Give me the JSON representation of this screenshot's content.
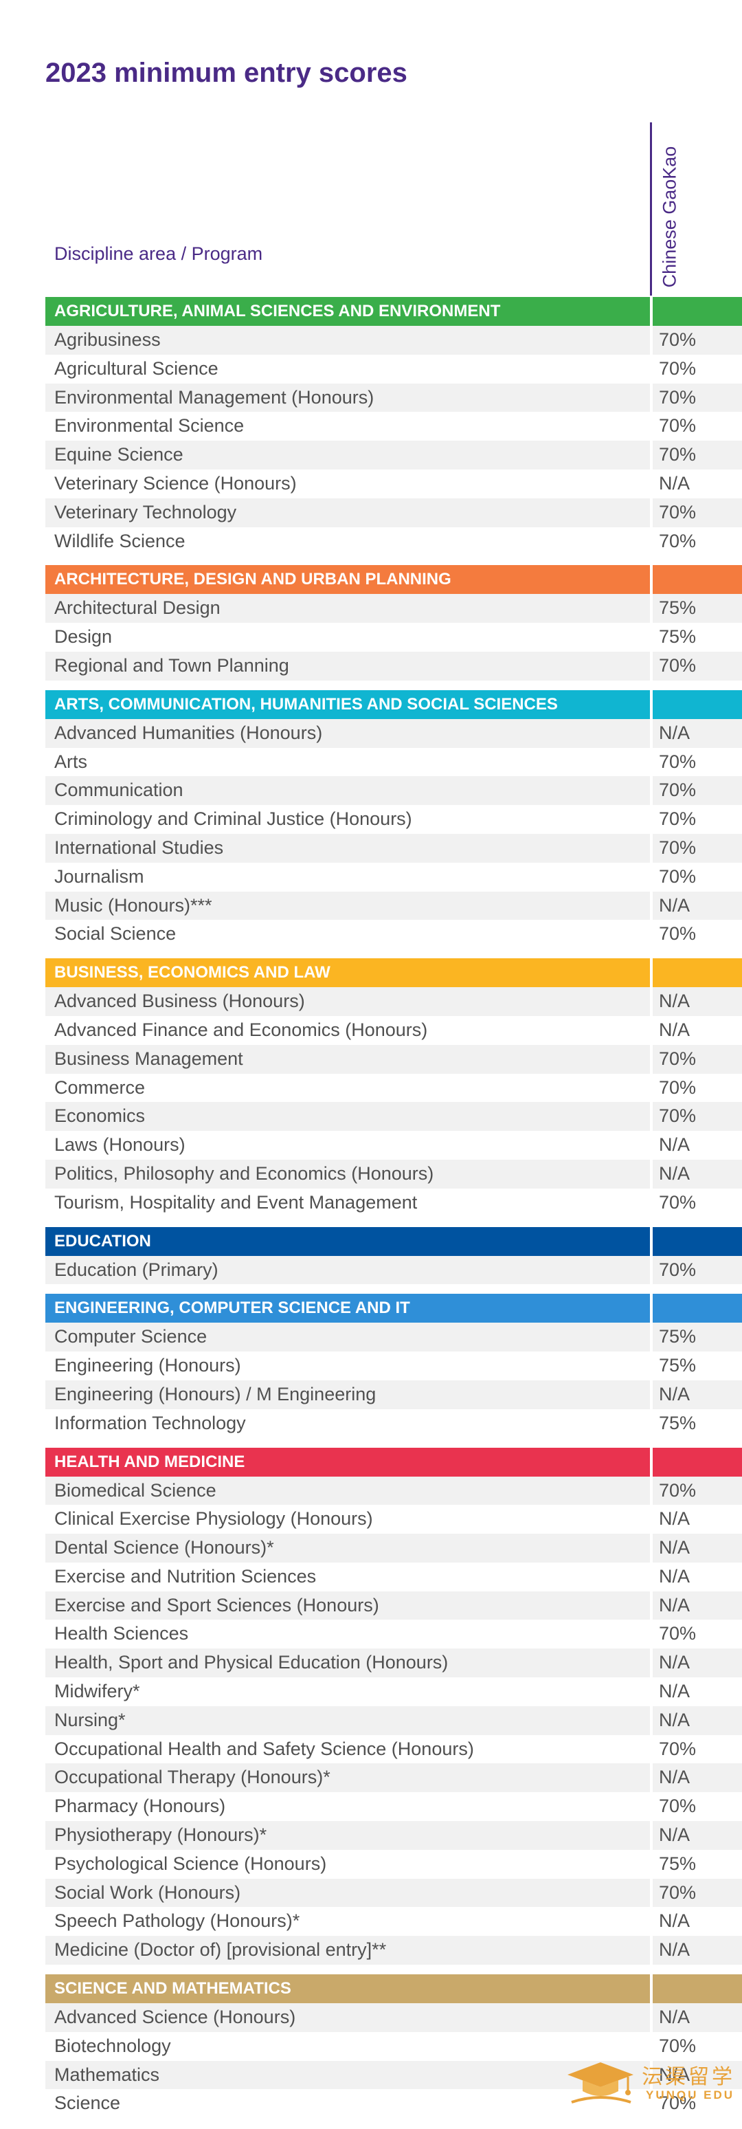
{
  "title": "2023 minimum entry scores",
  "columns": {
    "program": "Discipline area / Program",
    "score": "Chinese GaoKao"
  },
  "sections": [
    {
      "name": "AGRICULTURE, ANIMAL SCIENCES AND ENVIRONMENT",
      "color": "#3aae4a",
      "rows": [
        {
          "program": "Agribusiness",
          "score": "70%"
        },
        {
          "program": "Agricultural Science",
          "score": "70%"
        },
        {
          "program": "Environmental Management (Honours)",
          "score": "70%"
        },
        {
          "program": "Environmental Science",
          "score": "70%"
        },
        {
          "program": "Equine Science",
          "score": "70%"
        },
        {
          "program": "Veterinary Science (Honours)",
          "score": "N/A"
        },
        {
          "program": "Veterinary Technology",
          "score": "70%"
        },
        {
          "program": "Wildlife Science",
          "score": "70%"
        }
      ]
    },
    {
      "name": "ARCHITECTURE, DESIGN AND URBAN PLANNING",
      "color": "#f47b3e",
      "rows": [
        {
          "program": "Architectural Design",
          "score": "75%"
        },
        {
          "program": "Design",
          "score": "75%"
        },
        {
          "program": "Regional and Town Planning",
          "score": "70%"
        }
      ]
    },
    {
      "name": "ARTS, COMMUNICATION, HUMANITIES AND SOCIAL SCIENCES",
      "color": "#10b5d1",
      "rows": [
        {
          "program": "Advanced Humanities (Honours)",
          "score": "N/A"
        },
        {
          "program": "Arts",
          "score": "70%"
        },
        {
          "program": "Communication",
          "score": "70%"
        },
        {
          "program": "Criminology and Criminal Justice (Honours)",
          "score": "70%"
        },
        {
          "program": "International Studies",
          "score": "70%"
        },
        {
          "program": "Journalism",
          "score": "70%"
        },
        {
          "program": "Music (Honours)***",
          "score": "N/A"
        },
        {
          "program": "Social Science",
          "score": "70%"
        }
      ]
    },
    {
      "name": "BUSINESS, ECONOMICS AND LAW",
      "color": "#fbb522",
      "rows": [
        {
          "program": "Advanced Business (Honours)",
          "score": "N/A"
        },
        {
          "program": "Advanced Finance and Economics (Honours)",
          "score": "N/A"
        },
        {
          "program": "Business Management",
          "score": "70%"
        },
        {
          "program": "Commerce",
          "score": "70%"
        },
        {
          "program": "Economics",
          "score": "70%"
        },
        {
          "program": "Laws (Honours)",
          "score": "N/A"
        },
        {
          "program": "Politics, Philosophy and Economics (Honours)",
          "score": "N/A"
        },
        {
          "program": "Tourism, Hospitality and Event Management",
          "score": "70%"
        }
      ]
    },
    {
      "name": "EDUCATION",
      "color": "#0053a0",
      "rows": [
        {
          "program": "Education (Primary)",
          "score": "70%"
        }
      ]
    },
    {
      "name": "ENGINEERING, COMPUTER SCIENCE AND IT",
      "color": "#2f8fd8",
      "rows": [
        {
          "program": "Computer Science",
          "score": "75%"
        },
        {
          "program": "Engineering (Honours)",
          "score": "75%"
        },
        {
          "program": "Engineering (Honours) / M Engineering",
          "score": "N/A"
        },
        {
          "program": "Information Technology",
          "score": "75%"
        }
      ]
    },
    {
      "name": "HEALTH AND MEDICINE",
      "color": "#e9334f",
      "rows": [
        {
          "program": "Biomedical Science",
          "score": "70%"
        },
        {
          "program": "Clinical Exercise Physiology (Honours)",
          "score": "N/A"
        },
        {
          "program": "Dental Science (Honours)*",
          "score": "N/A"
        },
        {
          "program": "Exercise and Nutrition Sciences",
          "score": "N/A"
        },
        {
          "program": "Exercise and Sport Sciences (Honours)",
          "score": "N/A"
        },
        {
          "program": "Health Sciences",
          "score": "70%"
        },
        {
          "program": "Health, Sport and Physical Education (Honours)",
          "score": "N/A"
        },
        {
          "program": "Midwifery*",
          "score": "N/A"
        },
        {
          "program": "Nursing*",
          "score": "N/A"
        },
        {
          "program": "Occupational Health and Safety Science (Honours)",
          "score": "70%"
        },
        {
          "program": "Occupational Therapy (Honours)*",
          "score": "N/A"
        },
        {
          "program": "Pharmacy (Honours)",
          "score": "70%"
        },
        {
          "program": "Physiotherapy (Honours)*",
          "score": "N/A"
        },
        {
          "program": "Psychological Science (Honours)",
          "score": "75%"
        },
        {
          "program": "Social Work (Honours)",
          "score": "70%"
        },
        {
          "program": "Speech Pathology (Honours)*",
          "score": "N/A"
        },
        {
          "program": "Medicine (Doctor of) [provisional entry]**",
          "score": "N/A"
        }
      ]
    },
    {
      "name": "SCIENCE AND MATHEMATICS",
      "color": "#c9a96a",
      "rows": [
        {
          "program": "Advanced Science (Honours)",
          "score": "N/A"
        },
        {
          "program": "Biotechnology",
          "score": "70%"
        },
        {
          "program": "Mathematics",
          "score": "N/A"
        },
        {
          "program": "Science",
          "score": "70%"
        }
      ]
    }
  ],
  "watermark": {
    "cn": "沄渠留学",
    "en": "YUNQU EDU",
    "icon": "graduation-cap-icon",
    "color": "#e8a23a"
  }
}
